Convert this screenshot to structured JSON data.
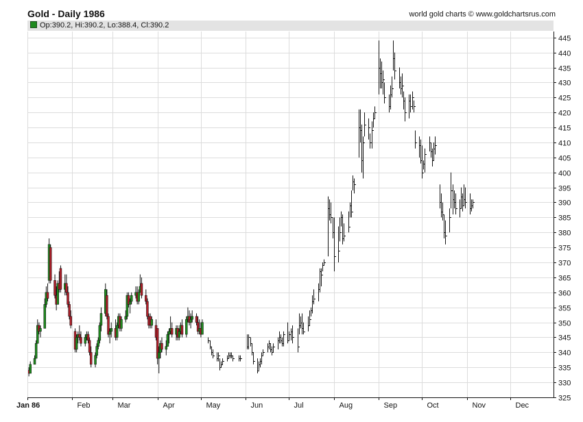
{
  "header": {
    "title": "Gold - Daily 1986",
    "source": "world gold charts © www.goldchartsrus.com",
    "info": "Op:390.2, Hi:390.2, Lo:388.4, Cl:390.2"
  },
  "colors": {
    "up_candle": "#1f8a1f",
    "down_candle": "#b0202a",
    "bar": "#111111",
    "grid": "#dcdcdc",
    "axis": "#111111",
    "info_swatch": "#1f8a1f"
  },
  "chart_data": {
    "type": "candlestick",
    "title": "Gold - Daily 1986",
    "xlabel": "",
    "ylabel": "",
    "ylim": [
      325,
      447
    ],
    "grid": true,
    "y_axis_side": "right",
    "y_ticks": [
      325,
      330,
      335,
      340,
      345,
      350,
      355,
      360,
      365,
      370,
      375,
      380,
      385,
      390,
      395,
      400,
      405,
      410,
      415,
      420,
      425,
      430,
      435,
      440,
      445
    ],
    "x_range": [
      "1986-01-01",
      "1986-12-31"
    ],
    "x_ticks": [
      {
        "date": "1986-01-01",
        "label": "Jan 86"
      },
      {
        "date": "1986-02-01",
        "label": "Feb"
      },
      {
        "date": "1986-03-01",
        "label": "Mar"
      },
      {
        "date": "1986-04-01",
        "label": "Apr"
      },
      {
        "date": "1986-05-01",
        "label": "May"
      },
      {
        "date": "1986-06-01",
        "label": "Jun"
      },
      {
        "date": "1986-07-01",
        "label": "Jul"
      },
      {
        "date": "1986-08-01",
        "label": "Aug"
      },
      {
        "date": "1986-09-01",
        "label": "Sep"
      },
      {
        "date": "1986-10-01",
        "label": "Oct"
      },
      {
        "date": "1986-11-01",
        "label": "Nov"
      },
      {
        "date": "1986-12-01",
        "label": "Dec"
      }
    ],
    "candles_key": [
      "date",
      "open",
      "high",
      "low",
      "close"
    ],
    "candles": [
      [
        "1986-01-02",
        334,
        335,
        332,
        333
      ],
      [
        "1986-01-03",
        333,
        337,
        333,
        336
      ],
      [
        "1986-01-06",
        336,
        339,
        336,
        338
      ],
      [
        "1986-01-07",
        338,
        344,
        338,
        343
      ],
      [
        "1986-01-08",
        343,
        351,
        343,
        349
      ],
      [
        "1986-01-09",
        349,
        350,
        346,
        347
      ],
      [
        "1986-01-10",
        347,
        349,
        345,
        348
      ],
      [
        "1986-01-13",
        348,
        358,
        348,
        356
      ],
      [
        "1986-01-14",
        356,
        362,
        355,
        360
      ],
      [
        "1986-01-15",
        360,
        363,
        357,
        358
      ],
      [
        "1986-01-16",
        364,
        378,
        363,
        376
      ],
      [
        "1986-01-17",
        375,
        376,
        363,
        364
      ],
      [
        "1986-01-20",
        364,
        366,
        358,
        359
      ],
      [
        "1986-01-21",
        359,
        362,
        354,
        356
      ],
      [
        "1986-01-22",
        356,
        364,
        356,
        363
      ],
      [
        "1986-01-23",
        363,
        367,
        360,
        361
      ],
      [
        "1986-01-24",
        368,
        369,
        360,
        361
      ],
      [
        "1986-01-27",
        361,
        366,
        359,
        363
      ],
      [
        "1986-01-28",
        363,
        366,
        359,
        360
      ],
      [
        "1986-01-29",
        360,
        362,
        355,
        356
      ],
      [
        "1986-01-30",
        356,
        357,
        351,
        352
      ],
      [
        "1986-01-31",
        352,
        354,
        348,
        349
      ],
      [
        "1986-02-03",
        347,
        348,
        340,
        341
      ],
      [
        "1986-02-04",
        341,
        346,
        340,
        345
      ],
      [
        "1986-02-05",
        345,
        347,
        343,
        346
      ],
      [
        "1986-02-06",
        346,
        349,
        344,
        345
      ],
      [
        "1986-02-07",
        345,
        347,
        342,
        343
      ],
      [
        "1986-02-10",
        343,
        346,
        342,
        345
      ],
      [
        "1986-02-11",
        345,
        347,
        344,
        346
      ],
      [
        "1986-02-12",
        346,
        347,
        343,
        344
      ],
      [
        "1986-02-13",
        344,
        345,
        339,
        340
      ],
      [
        "1986-02-14",
        340,
        342,
        335,
        336
      ],
      [
        "1986-02-17",
        336,
        340,
        335,
        339
      ],
      [
        "1986-02-18",
        339,
        343,
        338,
        342
      ],
      [
        "1986-02-19",
        342,
        345,
        341,
        344
      ],
      [
        "1986-02-20",
        344,
        350,
        343,
        349
      ],
      [
        "1986-02-21",
        349,
        355,
        347,
        353
      ],
      [
        "1986-02-24",
        353,
        363,
        352,
        361
      ],
      [
        "1986-02-25",
        359,
        361,
        351,
        352
      ],
      [
        "1986-02-26",
        352,
        353,
        345,
        346
      ],
      [
        "1986-02-27",
        346,
        348,
        343,
        347
      ],
      [
        "1986-02-28",
        347,
        350,
        345,
        348
      ],
      [
        "1986-03-03",
        348,
        351,
        344,
        345
      ],
      [
        "1986-03-04",
        345,
        350,
        344,
        349
      ],
      [
        "1986-03-05",
        349,
        353,
        348,
        352
      ],
      [
        "1986-03-06",
        352,
        353,
        347,
        348
      ],
      [
        "1986-03-07",
        348,
        352,
        347,
        351
      ],
      [
        "1986-03-10",
        351,
        354,
        350,
        352
      ],
      [
        "1986-03-11",
        352,
        360,
        351,
        359
      ],
      [
        "1986-03-12",
        359,
        360,
        355,
        356
      ],
      [
        "1986-03-13",
        356,
        358,
        353,
        357
      ],
      [
        "1986-03-14",
        357,
        360,
        356,
        359
      ],
      [
        "1986-03-17",
        359,
        362,
        358,
        360
      ],
      [
        "1986-03-18",
        360,
        362,
        356,
        357
      ],
      [
        "1986-03-19",
        357,
        361,
        356,
        360
      ],
      [
        "1986-03-20",
        360,
        366,
        360,
        362
      ],
      [
        "1986-03-21",
        363,
        365,
        358,
        359
      ],
      [
        "1986-03-24",
        359,
        361,
        356,
        357
      ],
      [
        "1986-03-25",
        357,
        358,
        351,
        352
      ],
      [
        "1986-03-26",
        352,
        353,
        348,
        349
      ],
      [
        "1986-03-27",
        352,
        353,
        348,
        349
      ],
      [
        "1986-03-28",
        349,
        352,
        348,
        351
      ],
      [
        "1986-03-31",
        349,
        351,
        344,
        345
      ],
      [
        "1986-04-01",
        348,
        348,
        336,
        338
      ],
      [
        "1986-04-02",
        338,
        342,
        333,
        340
      ],
      [
        "1986-04-03",
        340,
        344,
        338,
        343
      ],
      [
        "1986-04-04",
        343,
        345,
        340,
        341
      ],
      [
        "1986-04-07",
        341,
        344,
        339,
        342
      ],
      [
        "1986-04-08",
        342,
        347,
        342,
        346
      ],
      [
        "1986-04-09",
        346,
        348,
        343,
        347
      ],
      [
        "1986-04-10",
        347,
        352,
        346,
        348
      ],
      [
        "1986-04-11",
        348,
        350,
        345,
        346
      ],
      [
        "1986-04-14",
        346,
        349,
        344,
        348
      ],
      [
        "1986-04-15",
        348,
        349,
        344,
        345
      ],
      [
        "1986-04-16",
        345,
        348,
        344,
        347
      ],
      [
        "1986-04-17",
        347,
        350,
        346,
        349
      ],
      [
        "1986-04-18",
        349,
        351,
        345,
        346
      ],
      [
        "1986-04-21",
        346,
        352,
        345,
        351
      ],
      [
        "1986-04-22",
        351,
        355,
        350,
        352
      ],
      [
        "1986-04-23",
        352,
        354,
        349,
        350
      ],
      [
        "1986-04-24",
        350,
        353,
        348,
        351
      ],
      [
        "1986-04-25",
        351,
        354,
        350,
        352
      ],
      [
        "1986-04-28",
        352,
        353,
        349,
        350
      ],
      [
        "1986-04-29",
        350,
        352,
        346,
        347
      ],
      [
        "1986-04-30",
        347,
        351,
        346,
        348
      ],
      [
        "1986-05-01",
        348,
        350,
        345,
        346
      ],
      [
        "1986-05-02",
        346,
        351,
        346,
        350
      ]
    ],
    "bars_key": [
      "date",
      "high",
      "low",
      "close"
    ],
    "bars": [
      [
        "1986-05-06",
        345,
        343,
        344
      ],
      [
        "1986-05-07",
        344,
        341,
        342
      ],
      [
        "1986-05-08",
        342,
        339,
        340
      ],
      [
        "1986-05-09",
        341,
        338,
        339
      ],
      [
        "1986-05-12",
        340,
        337,
        338
      ],
      [
        "1986-05-13",
        340,
        337,
        339
      ],
      [
        "1986-05-14",
        338,
        334,
        335
      ],
      [
        "1986-05-15",
        337,
        335,
        336
      ],
      [
        "1986-05-16",
        338,
        336,
        337
      ],
      [
        "1986-05-19",
        339,
        337,
        338
      ],
      [
        "1986-05-20",
        340,
        338,
        339
      ],
      [
        "1986-05-21",
        340,
        338,
        339
      ],
      [
        "1986-05-22",
        340,
        338,
        339
      ],
      [
        "1986-05-23",
        339,
        337,
        338
      ],
      [
        "1986-05-27",
        339,
        337,
        338
      ],
      [
        "1986-05-28",
        339,
        337,
        338
      ],
      [
        "1986-06-02",
        346,
        341,
        342
      ],
      [
        "1986-06-03",
        346,
        341,
        345
      ],
      [
        "1986-06-04",
        345,
        342,
        343
      ],
      [
        "1986-06-05",
        343,
        339,
        340
      ],
      [
        "1986-06-06",
        340,
        336,
        337
      ],
      [
        "1986-06-09",
        338,
        333,
        334
      ],
      [
        "1986-06-10",
        337,
        334,
        336
      ],
      [
        "1986-06-11",
        338,
        335,
        337
      ],
      [
        "1986-06-12",
        340,
        336,
        339
      ],
      [
        "1986-06-13",
        341,
        339,
        340
      ],
      [
        "1986-06-16",
        343,
        340,
        342
      ],
      [
        "1986-06-17",
        344,
        341,
        343
      ],
      [
        "1986-06-18",
        343,
        340,
        341
      ],
      [
        "1986-06-19",
        342,
        339,
        340
      ],
      [
        "1986-06-20",
        343,
        340,
        342
      ],
      [
        "1986-06-23",
        345,
        341,
        344
      ],
      [
        "1986-06-24",
        347,
        343,
        345
      ],
      [
        "1986-06-25",
        346,
        343,
        344
      ],
      [
        "1986-06-26",
        345,
        342,
        343
      ],
      [
        "1986-06-27",
        347,
        342,
        346
      ],
      [
        "1986-06-30",
        350,
        343,
        344
      ],
      [
        "1986-07-01",
        347,
        344,
        346
      ],
      [
        "1986-07-02",
        348,
        344,
        347
      ],
      [
        "1986-07-03",
        349,
        343,
        345
      ],
      [
        "1986-07-07",
        348,
        340,
        342
      ],
      [
        "1986-07-08",
        353,
        346,
        349
      ],
      [
        "1986-07-09",
        352,
        348,
        350
      ],
      [
        "1986-07-10",
        353,
        346,
        348
      ],
      [
        "1986-07-11",
        350,
        346,
        347
      ],
      [
        "1986-07-14",
        352,
        347,
        349
      ],
      [
        "1986-07-15",
        354,
        349,
        351
      ],
      [
        "1986-07-16",
        355,
        352,
        354
      ],
      [
        "1986-07-17",
        359,
        353,
        357
      ],
      [
        "1986-07-18",
        361,
        356,
        358
      ],
      [
        "1986-07-21",
        363,
        357,
        361
      ],
      [
        "1986-07-22",
        368,
        360,
        367
      ],
      [
        "1986-07-23",
        368,
        362,
        366
      ],
      [
        "1986-07-24",
        370,
        367,
        369
      ],
      [
        "1986-07-25",
        371,
        369,
        370
      ],
      [
        "1986-07-28",
        392,
        372,
        388
      ],
      [
        "1986-07-29",
        391,
        384,
        386
      ],
      [
        "1986-07-30",
        390,
        383,
        385
      ],
      [
        "1986-07-31",
        385,
        378,
        380
      ],
      [
        "1986-08-01",
        385,
        367,
        372
      ],
      [
        "1986-08-04",
        382,
        370,
        374
      ],
      [
        "1986-08-05",
        385,
        377,
        380
      ],
      [
        "1986-08-06",
        387,
        382,
        385
      ],
      [
        "1986-08-07",
        386,
        376,
        378
      ],
      [
        "1986-08-08",
        383,
        377,
        379
      ],
      [
        "1986-08-11",
        387,
        380,
        382
      ],
      [
        "1986-08-12",
        390,
        385,
        389
      ],
      [
        "1986-08-13",
        394,
        385,
        387
      ],
      [
        "1986-08-14",
        399,
        394,
        397
      ],
      [
        "1986-08-15",
        398,
        393,
        396
      ],
      [
        "1986-08-18",
        421,
        405,
        415
      ],
      [
        "1986-08-19",
        421,
        410,
        414
      ],
      [
        "1986-08-20",
        416,
        400,
        404
      ],
      [
        "1986-08-21",
        412,
        398,
        410
      ],
      [
        "1986-08-22",
        420,
        412,
        416
      ],
      [
        "1986-08-25",
        418,
        411,
        415
      ],
      [
        "1986-08-26",
        413,
        408,
        410
      ],
      [
        "1986-08-27",
        417,
        408,
        414
      ],
      [
        "1986-08-28",
        420,
        415,
        418
      ],
      [
        "1986-08-29",
        422,
        418,
        420
      ],
      [
        "1986-09-01",
        444,
        426,
        435
      ],
      [
        "1986-09-02",
        438,
        428,
        433
      ],
      [
        "1986-09-03",
        437,
        428,
        430
      ],
      [
        "1986-09-04",
        434,
        426,
        431
      ],
      [
        "1986-09-05",
        430,
        423,
        425
      ],
      [
        "1986-09-08",
        426,
        420,
        422
      ],
      [
        "1986-09-09",
        429,
        421,
        426
      ],
      [
        "1986-09-10",
        432,
        425,
        428
      ],
      [
        "1986-09-11",
        444,
        434,
        438
      ],
      [
        "1986-09-12",
        440,
        431,
        434
      ],
      [
        "1986-09-15",
        435,
        428,
        430
      ],
      [
        "1986-09-16",
        432,
        426,
        428
      ],
      [
        "1986-09-17",
        433,
        425,
        429
      ],
      [
        "1986-09-18",
        427,
        421,
        424
      ],
      [
        "1986-09-19",
        425,
        417,
        420
      ],
      [
        "1986-09-22",
        426,
        418,
        424
      ],
      [
        "1986-09-23",
        426,
        420,
        422
      ],
      [
        "1986-09-24",
        427,
        421,
        425
      ],
      [
        "1986-09-25",
        424,
        420,
        422
      ],
      [
        "1986-09-26",
        414,
        408,
        410
      ],
      [
        "1986-09-29",
        412,
        405,
        409
      ],
      [
        "1986-09-30",
        411,
        403,
        404
      ],
      [
        "1986-10-01",
        409,
        398,
        400
      ],
      [
        "1986-10-02",
        404,
        401,
        403
      ],
      [
        "1986-10-03",
        408,
        400,
        406
      ],
      [
        "1986-10-06",
        412,
        407,
        410
      ],
      [
        "1986-10-07",
        410,
        405,
        407
      ],
      [
        "1986-10-08",
        408,
        402,
        404
      ],
      [
        "1986-10-09",
        410,
        404,
        408
      ],
      [
        "1986-10-10",
        412,
        406,
        409
      ],
      [
        "1986-10-13",
        396,
        388,
        390
      ],
      [
        "1986-10-14",
        393,
        385,
        387
      ],
      [
        "1986-10-15",
        390,
        384,
        386
      ],
      [
        "1986-10-16",
        386,
        378,
        380
      ],
      [
        "1986-10-17",
        384,
        376,
        379
      ],
      [
        "1986-10-20",
        388,
        380,
        385
      ],
      [
        "1986-10-21",
        400,
        388,
        394
      ],
      [
        "1986-10-22",
        396,
        386,
        391
      ],
      [
        "1986-10-23",
        394,
        388,
        390
      ],
      [
        "1986-10-24",
        393,
        386,
        388
      ],
      [
        "1986-10-27",
        391,
        385,
        388
      ],
      [
        "1986-10-28",
        395,
        388,
        392
      ],
      [
        "1986-10-29",
        393,
        387,
        389
      ],
      [
        "1986-10-30",
        396,
        389,
        391
      ],
      [
        "1986-10-31",
        395,
        388,
        390
      ],
      [
        "1986-11-03",
        393,
        386,
        388
      ],
      [
        "1986-11-04",
        391,
        387,
        389
      ],
      [
        "1986-11-05",
        391,
        388,
        390
      ]
    ]
  }
}
